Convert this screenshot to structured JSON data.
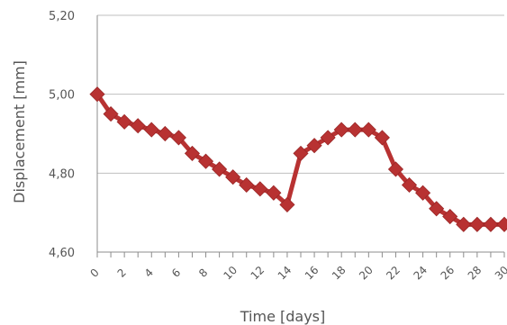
{
  "chart_data": {
    "type": "line",
    "title": "",
    "xlabel": "Time [days]",
    "ylabel": "Displacement [mm]",
    "xlim": [
      0,
      30
    ],
    "ylim": [
      4.6,
      5.2
    ],
    "grid": true,
    "legend": "none",
    "yticks": [
      "4,60",
      "4,80",
      "5,00",
      "5,20"
    ],
    "xticks": [
      "0",
      "2",
      "4",
      "6",
      "8",
      "10",
      "12",
      "14",
      "16",
      "18",
      "20",
      "22",
      "24",
      "26",
      "28",
      "30"
    ],
    "marker": "diamond",
    "series": [
      {
        "color": "#b83232",
        "x": [
          0,
          1,
          2,
          3,
          4,
          5,
          6,
          7,
          8,
          9,
          10,
          11,
          12,
          13,
          14,
          15,
          16,
          17,
          18,
          19,
          20,
          21,
          22,
          23,
          24,
          25,
          26,
          27,
          28,
          29,
          30
        ],
        "y": [
          5.0,
          4.95,
          4.93,
          4.92,
          4.91,
          4.9,
          4.89,
          4.85,
          4.83,
          4.81,
          4.79,
          4.77,
          4.76,
          4.75,
          4.72,
          4.85,
          4.87,
          4.89,
          4.91,
          4.91,
          4.91,
          4.89,
          4.81,
          4.77,
          4.75,
          4.71,
          4.69,
          4.67,
          4.67,
          4.67,
          4.67
        ]
      }
    ]
  }
}
